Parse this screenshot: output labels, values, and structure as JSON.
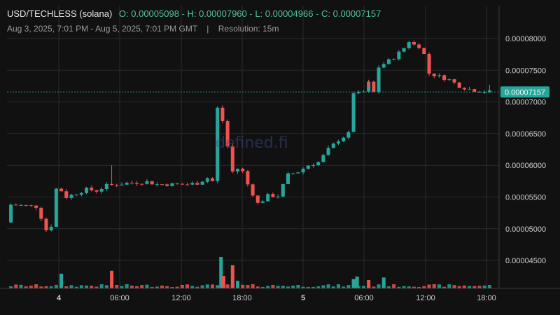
{
  "header": {
    "symbol": "USD/TECHLESS (solana)",
    "ohlc": "O: 0.00005098 - H: 0.00007960 - L: 0.00004966 - C: 0.00007157",
    "date_range": "Aug 3, 2025, 7:01 PM - Aug 5, 2025, 7:01 PM GMT",
    "separator": "|",
    "resolution": "Resolution: 15m"
  },
  "watermark": "defined.fi",
  "colors": {
    "up": "#26a69a",
    "down": "#ef5350",
    "background": "#111111",
    "grid": "#2a2a2a",
    "price_tag": "#26a69a"
  },
  "chart_data": {
    "type": "candlestick",
    "title": "USD/TECHLESS (solana)",
    "resolution": "15m",
    "ylim": [
      4.1e-05,
      8.1e-05
    ],
    "y_ticks": [
      "0.00008000",
      "0.00007500",
      "0.00007000",
      "0.00006500",
      "0.00006000",
      "0.00005500",
      "0.00005000",
      "0.00004500"
    ],
    "x_ticks": [
      "4",
      "06:00",
      "12:00",
      "18:00",
      "5",
      "06:00",
      "12:00",
      "18:00"
    ],
    "current_price": "0.00007157",
    "close_path": [
      [
        0,
        5.098e-05
      ],
      [
        0.6,
        5.2e-05
      ],
      [
        1,
        5.38e-05
      ],
      [
        6,
        5.35e-05
      ],
      [
        7,
        5.18e-05
      ],
      [
        8,
        4.98e-05
      ],
      [
        9,
        5.05e-05
      ],
      [
        10,
        5.63e-05
      ],
      [
        11,
        5.6e-05
      ],
      [
        12,
        5.5e-05
      ],
      [
        14,
        5.56e-05
      ],
      [
        16,
        5.62e-05
      ],
      [
        18,
        5.6e-05
      ],
      [
        20,
        5.68e-05
      ],
      [
        24,
        5.72e-05
      ],
      [
        28,
        5.74e-05
      ],
      [
        30,
        5.7e-05
      ],
      [
        36,
        5.7e-05
      ],
      [
        38,
        5.72e-05
      ],
      [
        40,
        5.8e-05
      ],
      [
        41,
        5.75e-05
      ],
      [
        42,
        6.9e-05
      ],
      [
        43,
        6.7e-05
      ],
      [
        44,
        6.3e-05
      ],
      [
        45,
        5.9e-05
      ],
      [
        46,
        5.95e-05
      ],
      [
        47,
        5.9e-05
      ],
      [
        48,
        5.7e-05
      ],
      [
        49,
        5.55e-05
      ],
      [
        50,
        5.4e-05
      ],
      [
        51,
        5.45e-05
      ],
      [
        52,
        5.52e-05
      ],
      [
        54,
        5.52e-05
      ],
      [
        56,
        5.85e-05
      ],
      [
        58,
        5.9e-05
      ],
      [
        60,
        6e-05
      ],
      [
        62,
        6.05e-05
      ],
      [
        64,
        6.25e-05
      ],
      [
        66,
        6.4e-05
      ],
      [
        68,
        6.5e-05
      ],
      [
        69,
        7.15e-05
      ],
      [
        70,
        7.13e-05
      ],
      [
        71,
        7.16e-05
      ],
      [
        72,
        7.3e-05
      ],
      [
        73,
        7.15e-05
      ],
      [
        74,
        7.55e-05
      ],
      [
        75,
        7.6e-05
      ],
      [
        77,
        7.7e-05
      ],
      [
        79,
        7.85e-05
      ],
      [
        80,
        7.96e-05
      ],
      [
        81,
        7.9e-05
      ],
      [
        82,
        7.88e-05
      ],
      [
        83,
        7.75e-05
      ],
      [
        84,
        7.45e-05
      ],
      [
        86,
        7.4e-05
      ],
      [
        88,
        7.35e-05
      ],
      [
        90,
        7.25e-05
      ],
      [
        92,
        7.2e-05
      ],
      [
        94,
        7.17e-05
      ],
      [
        96,
        7.157e-05
      ]
    ],
    "spikes": [
      {
        "t": 20.5,
        "high": 6e-05
      },
      {
        "t": 71.5,
        "high": 7.35e-05
      },
      {
        "t": 95.5,
        "high": 7.27e-05
      }
    ],
    "volume_spikes": [
      {
        "t": 10.5,
        "v": 0.35,
        "up": true
      },
      {
        "t": 20.5,
        "v": 0.42,
        "up": false
      },
      {
        "t": 42.2,
        "v": 0.75,
        "up": true
      },
      {
        "t": 42.7,
        "v": 0.3,
        "up": false
      },
      {
        "t": 44.5,
        "v": 0.55,
        "up": false
      },
      {
        "t": 45.5,
        "v": 0.18,
        "up": true
      },
      {
        "t": 68.5,
        "v": 0.22,
        "up": true
      },
      {
        "t": 69.2,
        "v": 0.28,
        "up": true
      },
      {
        "t": 74.5,
        "v": 0.26,
        "up": true
      },
      {
        "t": 71.5,
        "v": 0.2,
        "up": false
      }
    ]
  }
}
